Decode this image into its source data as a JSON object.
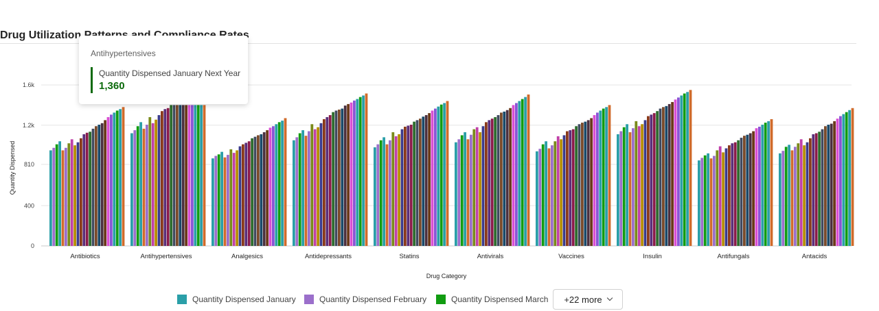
{
  "chart_data": {
    "type": "bar",
    "title": "Drug Utilization Patterns and Compliance Rates",
    "xlabel": "Drug Category",
    "ylabel": "Quantity Dispensed",
    "ylim": [
      0,
      1800
    ],
    "yticks": [
      0,
      400,
      810,
      1200,
      1600
    ],
    "ytick_labels": [
      "0",
      "400",
      "810",
      "1.2k",
      "1.6k"
    ],
    "grid": true,
    "legend_position": "bottom",
    "categories": [
      "Antibiotics",
      "Antihypertensives",
      "Analgesics",
      "Antidepressants",
      "Statins",
      "Antivirals",
      "Vaccines",
      "Insulin",
      "Antifungals",
      "Antacids"
    ],
    "series_count": 25,
    "series": [
      {
        "name": "Quantity Dispensed January",
        "color": "#2a9fa8",
        "values": [
          950,
          1120,
          870,
          1050,
          980,
          1030,
          940,
          1110,
          850,
          920
        ]
      },
      {
        "name": "Quantity Dispensed February",
        "color": "#9b6fcb",
        "values": [
          975,
          1150,
          895,
          1080,
          1010,
          1060,
          965,
          1140,
          875,
          945
        ]
      },
      {
        "name": "Quantity Dispensed March",
        "color": "#119c11",
        "values": [
          1010,
          1190,
          910,
          1120,
          1050,
          1100,
          1010,
          1180,
          900,
          985
        ]
      }
    ],
    "extra_series_values": {
      "Antibiotics": [
        1040,
        950,
        975,
        1020,
        1060,
        1000,
        1030,
        1070,
        1110,
        1125,
        1135,
        1165,
        1190,
        1205,
        1220,
        1250,
        1280,
        1305,
        1325,
        1345,
        1360,
        1380
      ],
      "Antihypertensives": [
        1230,
        1165,
        1205,
        1280,
        1220,
        1255,
        1300,
        1340,
        1360,
        1370,
        1400,
        1400,
        1400,
        1400,
        1400,
        1400,
        1400,
        1400,
        1400,
        1400,
        1400,
        1400
      ],
      "Analgesics": [
        935,
        880,
        905,
        960,
        925,
        950,
        990,
        1010,
        1025,
        1040,
        1070,
        1085,
        1100,
        1110,
        1130,
        1150,
        1175,
        1190,
        1210,
        1230,
        1245,
        1270
      ],
      "Antidepressants": [
        1150,
        1095,
        1140,
        1210,
        1160,
        1180,
        1220,
        1260,
        1280,
        1300,
        1330,
        1345,
        1355,
        1365,
        1395,
        1410,
        1425,
        1445,
        1460,
        1480,
        1495,
        1515
      ],
      "Statins": [
        1080,
        1010,
        1050,
        1130,
        1090,
        1110,
        1160,
        1185,
        1195,
        1205,
        1235,
        1250,
        1265,
        1285,
        1300,
        1320,
        1345,
        1365,
        1385,
        1405,
        1420,
        1440
      ],
      "Antivirals": [
        1130,
        1060,
        1105,
        1160,
        1180,
        1130,
        1190,
        1230,
        1250,
        1265,
        1280,
        1300,
        1325,
        1335,
        1350,
        1370,
        1400,
        1420,
        1440,
        1460,
        1480,
        1505
      ],
      "Vaccines": [
        1040,
        970,
        1000,
        1040,
        1090,
        1060,
        1100,
        1140,
        1150,
        1160,
        1190,
        1210,
        1225,
        1235,
        1250,
        1270,
        1300,
        1325,
        1345,
        1365,
        1380,
        1400
      ],
      "Insulin": [
        1210,
        1130,
        1170,
        1240,
        1190,
        1210,
        1250,
        1290,
        1305,
        1320,
        1340,
        1365,
        1380,
        1390,
        1410,
        1430,
        1455,
        1475,
        1495,
        1515,
        1530,
        1550
      ],
      "Antifungals": [
        920,
        870,
        895,
        950,
        990,
        930,
        970,
        1000,
        1020,
        1030,
        1050,
        1075,
        1095,
        1105,
        1120,
        1140,
        1170,
        1185,
        1205,
        1225,
        1240,
        1260
      ],
      "Antacids": [
        1005,
        950,
        985,
        1020,
        1060,
        1000,
        1030,
        1070,
        1110,
        1120,
        1135,
        1160,
        1190,
        1205,
        1215,
        1240,
        1265,
        1290,
        1310,
        1330,
        1350,
        1370
      ]
    },
    "extra_series_colors": [
      "#2a9fa8",
      "#d06b2b",
      "#9b6fcb",
      "#7a8a1a",
      "#c040a8",
      "#b78f00",
      "#3a3a8c",
      "#8a3a1a",
      "#5a2f7a",
      "#8a1a4a",
      "#2f6d2f",
      "#3f4a5f",
      "#7a4a2a",
      "#1a4a6a",
      "#4a2f3f",
      "#6a3a1a",
      "#d94fd2",
      "#8a55d6",
      "#2a9fa8",
      "#119c11",
      "#2a9fa8",
      "#d06b2b"
    ]
  },
  "tooltip": {
    "category": "Antihypertensives",
    "series_name": "Quantity Dispensed January Next Year",
    "value": "1,360"
  },
  "legend": {
    "items": [
      {
        "label": "Quantity Dispensed January",
        "color": "#2a9fa8"
      },
      {
        "label": "Quantity Dispensed February",
        "color": "#9b6fcb"
      },
      {
        "label": "Quantity Dispensed March",
        "color": "#119c11"
      }
    ],
    "more_label": "+22 more"
  }
}
